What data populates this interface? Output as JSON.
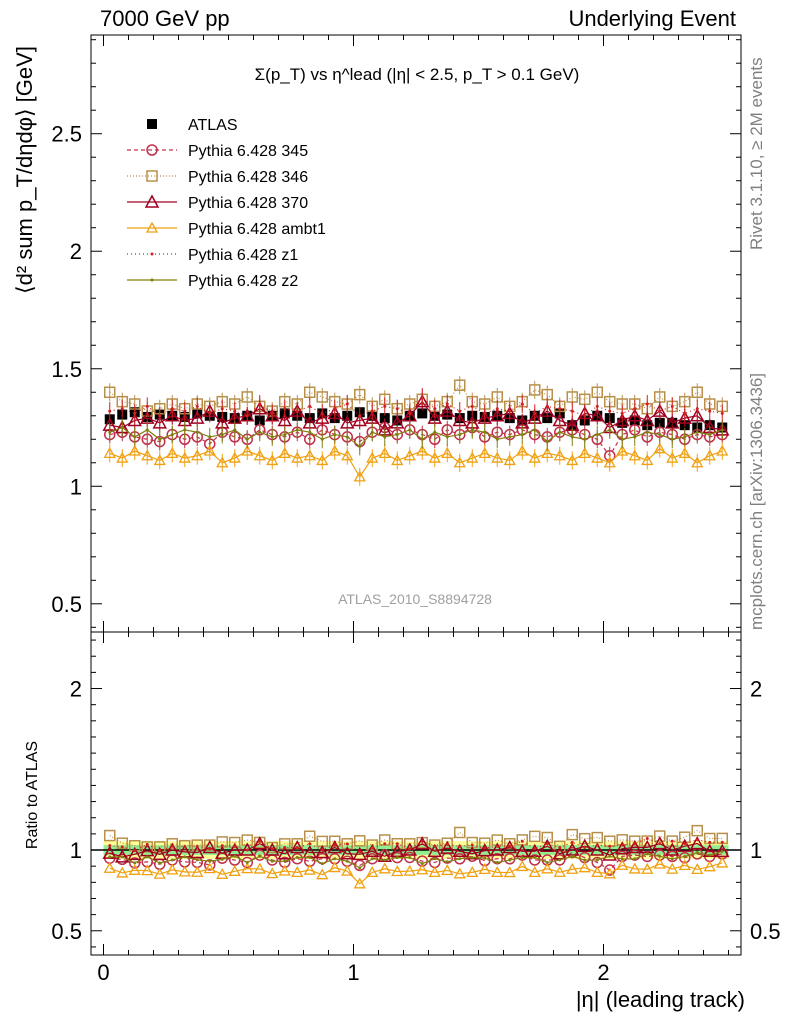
{
  "header": {
    "left": "7000 GeV pp",
    "right": "Underlying Event"
  },
  "side": {
    "rivet": "Rivet 3.1.10, ≥ 2M events",
    "mcplots": "mcplots.cern.ch [arXiv:1306.3436]"
  },
  "chart_data": {
    "type": "scatter",
    "title": "Σ(p_T) vs η^lead (|η| < 2.5, p_T > 0.1 GeV)",
    "ylabel": "⟨d² sum p_T/dηdφ⟩ [GeV]",
    "ratio_ylabel": "Ratio to ATLAS",
    "xlabel": "|η| (leading track)",
    "watermark": "ATLAS_2010_S8894728",
    "xlim": [
      -0.05,
      2.55
    ],
    "ylim": [
      0.38,
      2.92
    ],
    "ratio_ylim": [
      0.35,
      2.35
    ],
    "x_ticks": [
      "0",
      "1",
      "2"
    ],
    "y_ticks": [
      "0.5",
      "1",
      "1.5",
      "2",
      "2.5"
    ],
    "ratio_ticks": [
      "0.5",
      "1",
      "2"
    ],
    "legend_position": "top-left",
    "eta_range": [
      0.025,
      2.475
    ],
    "eta_step": 0.05,
    "n_points": 50,
    "colors": {
      "atlas": "#000000",
      "p345": "#c0304a",
      "p346": "#b8904a",
      "p370": "#a00020",
      "ambt1": "#f0a010",
      "z1": "#d02020",
      "z2": "#808010",
      "band_inner": "#90ee90",
      "band_outer": "#ffff99"
    },
    "series": [
      {
        "name": "ATLAS",
        "key": "atlas",
        "values": [
          1.285,
          1.305,
          1.315,
          1.295,
          1.305,
          1.3,
          1.295,
          1.31,
          1.3,
          1.295,
          1.29,
          1.3,
          1.28,
          1.3,
          1.31,
          1.3,
          1.29,
          1.31,
          1.29,
          1.3,
          1.315,
          1.3,
          1.29,
          1.28,
          1.3,
          1.31,
          1.3,
          1.305,
          1.29,
          1.3,
          1.295,
          1.3,
          1.29,
          1.28,
          1.3,
          1.29,
          1.31,
          1.26,
          1.28,
          1.3,
          1.29,
          1.27,
          1.28,
          1.26,
          1.27,
          1.27,
          1.26,
          1.25,
          1.26,
          1.25
        ]
      },
      {
        "name": "Pythia 6.428 345",
        "key": "p345",
        "values": [
          1.22,
          1.23,
          1.21,
          1.2,
          1.19,
          1.22,
          1.2,
          1.21,
          1.18,
          1.23,
          1.21,
          1.2,
          1.24,
          1.22,
          1.21,
          1.23,
          1.2,
          1.24,
          1.22,
          1.21,
          1.19,
          1.23,
          1.25,
          1.22,
          1.24,
          1.22,
          1.2,
          1.24,
          1.22,
          1.25,
          1.21,
          1.23,
          1.22,
          1.24,
          1.22,
          1.21,
          1.23,
          1.24,
          1.22,
          1.2,
          1.13,
          1.22,
          1.24,
          1.21,
          1.23,
          1.22,
          1.2,
          1.22,
          1.21,
          1.22
        ]
      },
      {
        "name": "Pythia 6.428 346",
        "key": "p346",
        "values": [
          1.4,
          1.36,
          1.35,
          1.32,
          1.33,
          1.35,
          1.33,
          1.35,
          1.34,
          1.36,
          1.35,
          1.38,
          1.34,
          1.32,
          1.36,
          1.35,
          1.4,
          1.38,
          1.36,
          1.35,
          1.39,
          1.34,
          1.37,
          1.33,
          1.35,
          1.37,
          1.34,
          1.36,
          1.43,
          1.36,
          1.35,
          1.38,
          1.34,
          1.36,
          1.41,
          1.39,
          1.34,
          1.38,
          1.37,
          1.4,
          1.36,
          1.35,
          1.35,
          1.33,
          1.38,
          1.34,
          1.36,
          1.4,
          1.35,
          1.34
        ]
      },
      {
        "name": "Pythia 6.428 370",
        "key": "p370",
        "values": [
          1.26,
          1.25,
          1.28,
          1.29,
          1.27,
          1.3,
          1.28,
          1.29,
          1.32,
          1.27,
          1.29,
          1.3,
          1.33,
          1.3,
          1.28,
          1.32,
          1.27,
          1.29,
          1.31,
          1.27,
          1.28,
          1.29,
          1.24,
          1.27,
          1.3,
          1.36,
          1.29,
          1.32,
          1.28,
          1.27,
          1.29,
          1.3,
          1.31,
          1.27,
          1.29,
          1.32,
          1.28,
          1.26,
          1.31,
          1.3,
          1.25,
          1.28,
          1.3,
          1.28,
          1.32,
          1.27,
          1.29,
          1.3,
          1.25,
          1.24
        ]
      },
      {
        "name": "Pythia 6.428 ambt1",
        "key": "ambt1",
        "values": [
          1.14,
          1.12,
          1.15,
          1.13,
          1.11,
          1.14,
          1.12,
          1.13,
          1.15,
          1.1,
          1.12,
          1.15,
          1.13,
          1.11,
          1.14,
          1.12,
          1.13,
          1.11,
          1.15,
          1.13,
          1.04,
          1.12,
          1.14,
          1.11,
          1.13,
          1.15,
          1.12,
          1.14,
          1.1,
          1.12,
          1.14,
          1.12,
          1.11,
          1.15,
          1.12,
          1.14,
          1.13,
          1.11,
          1.14,
          1.12,
          1.1,
          1.15,
          1.13,
          1.11,
          1.16,
          1.12,
          1.14,
          1.1,
          1.13,
          1.15
        ]
      },
      {
        "name": "Pythia 6.428 z1",
        "key": "z1",
        "values": [
          1.32,
          1.33,
          1.31,
          1.34,
          1.3,
          1.33,
          1.32,
          1.34,
          1.31,
          1.33,
          1.32,
          1.3,
          1.35,
          1.31,
          1.33,
          1.32,
          1.34,
          1.31,
          1.33,
          1.35,
          1.3,
          1.32,
          1.34,
          1.33,
          1.31,
          1.38,
          1.33,
          1.35,
          1.32,
          1.34,
          1.31,
          1.33,
          1.32,
          1.35,
          1.31,
          1.34,
          1.33,
          1.32,
          1.3,
          1.34,
          1.32,
          1.31,
          1.33,
          1.35,
          1.32,
          1.34,
          1.31,
          1.33,
          1.32,
          1.31
        ]
      },
      {
        "name": "Pythia 6.428 z2",
        "key": "z2",
        "values": [
          1.23,
          1.25,
          1.21,
          1.24,
          1.2,
          1.22,
          1.24,
          1.23,
          1.21,
          1.22,
          1.24,
          1.2,
          1.23,
          1.21,
          1.22,
          1.24,
          1.23,
          1.2,
          1.22,
          1.21,
          1.17,
          1.23,
          1.21,
          1.22,
          1.24,
          1.2,
          1.23,
          1.21,
          1.22,
          1.24,
          1.23,
          1.2,
          1.21,
          1.22,
          1.24,
          1.19,
          1.23,
          1.21,
          1.2,
          1.22,
          1.24,
          1.2,
          1.21,
          1.23,
          1.22,
          1.2,
          1.21,
          1.23,
          1.22,
          1.24
        ]
      }
    ]
  }
}
